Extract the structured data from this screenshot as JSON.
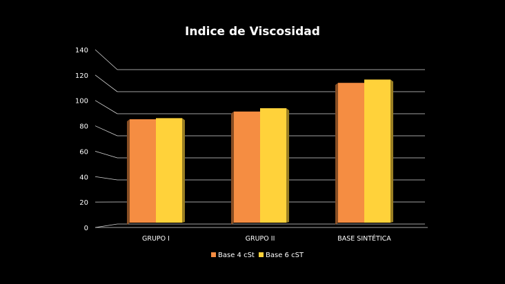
{
  "chart_data": {
    "type": "bar",
    "title": "Indice de Viscosidad",
    "categories": [
      "GRUPO I",
      "GRUPO II",
      "BASE SINTÉTICA"
    ],
    "series": [
      {
        "name": "Base 4 cSt",
        "values": [
          95,
          102,
          128
        ],
        "color": "#F58D42"
      },
      {
        "name": "Base 6 cST",
        "values": [
          96,
          105,
          131
        ],
        "color": "#FFD23A"
      }
    ],
    "ylim": [
      0,
      140
    ],
    "yticks": [
      0,
      20,
      40,
      60,
      80,
      100,
      120,
      140
    ],
    "grid": true,
    "legend": "bottom",
    "style": "3d-bar",
    "background": "#000000",
    "text_color": "#FFFFFF",
    "grid_color": "#D9D9D9"
  }
}
